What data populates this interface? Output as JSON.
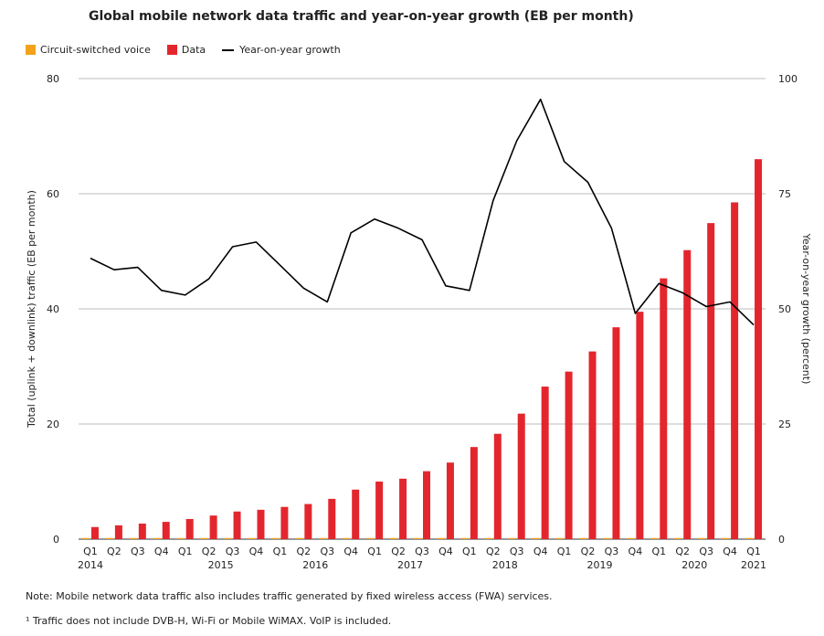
{
  "title": "Global mobile network data traffic and year-on-year growth (EB per month)",
  "notes": {
    "note1": "Note: Mobile network data traffic also includes traffic generated by fixed wireless access (FWA) services.",
    "note2": "¹ Traffic does not include DVB-H, Wi-Fi or Mobile WiMAX. VoIP is included."
  },
  "colors": {
    "voice": "#f3a21b",
    "data": "#e3262d",
    "growth": "#000000",
    "grid": "#bdbdbd"
  },
  "chart_data": {
    "type": "bar",
    "legend_position": "top-left",
    "grid": true,
    "ylabel": "Total (uplink + downlink) traffic (EB per month)",
    "y2label": "Year-on-year growth (percent)",
    "ylim": [
      0,
      80
    ],
    "y2lim": [
      0,
      100
    ],
    "yticks": [
      0,
      20,
      40,
      60,
      80
    ],
    "y2ticks": [
      0,
      25,
      50,
      75,
      100
    ],
    "categories": [
      "Q1",
      "Q2",
      "Q3",
      "Q4",
      "Q1",
      "Q2",
      "Q3",
      "Q4",
      "Q1",
      "Q2",
      "Q3",
      "Q4",
      "Q1",
      "Q2",
      "Q3",
      "Q4",
      "Q1",
      "Q2",
      "Q3",
      "Q4",
      "Q1",
      "Q2",
      "Q3",
      "Q4",
      "Q1",
      "Q2",
      "Q3",
      "Q4",
      "Q1"
    ],
    "year_labels": [
      {
        "label": "2014",
        "index": 0
      },
      {
        "label": "2015",
        "index": 4
      },
      {
        "label": "2016",
        "index": 8
      },
      {
        "label": "2017",
        "index": 12
      },
      {
        "label": "2018",
        "index": 16
      },
      {
        "label": "2019",
        "index": 20
      },
      {
        "label": "2020",
        "index": 24
      },
      {
        "label": "2021",
        "index": 28
      }
    ],
    "series": [
      {
        "name": "Circuit-switched voice",
        "type": "bar",
        "axis": "left",
        "values": [
          0.2,
          0.2,
          0.2,
          0.2,
          0.2,
          0.2,
          0.2,
          0.2,
          0.2,
          0.2,
          0.2,
          0.2,
          0.2,
          0.2,
          0.2,
          0.2,
          0.2,
          0.2,
          0.2,
          0.2,
          0.2,
          0.2,
          0.2,
          0.2,
          0.2,
          0.2,
          0.2,
          0.2,
          0.2
        ]
      },
      {
        "name": "Data",
        "type": "bar",
        "axis": "left",
        "values": [
          2.1,
          2.4,
          2.7,
          3.0,
          3.5,
          4.1,
          4.8,
          5.1,
          5.6,
          6.1,
          7.0,
          8.6,
          10.0,
          10.5,
          11.8,
          13.3,
          16.0,
          18.3,
          21.8,
          26.5,
          29.1,
          32.6,
          36.8,
          39.5,
          45.3,
          50.2,
          54.9,
          58.5,
          66.0
        ]
      },
      {
        "name": "Year-on-year growth",
        "type": "line",
        "axis": "right",
        "values": [
          61.0,
          58.5,
          59.0,
          54.0,
          53.0,
          56.5,
          63.5,
          64.5,
          59.5,
          54.5,
          51.5,
          66.5,
          69.5,
          67.5,
          65.0,
          55.0,
          54.0,
          73.5,
          86.5,
          95.5,
          82.0,
          77.5,
          67.5,
          49.0,
          55.5,
          53.5,
          50.5,
          51.5,
          46.5
        ]
      }
    ]
  }
}
